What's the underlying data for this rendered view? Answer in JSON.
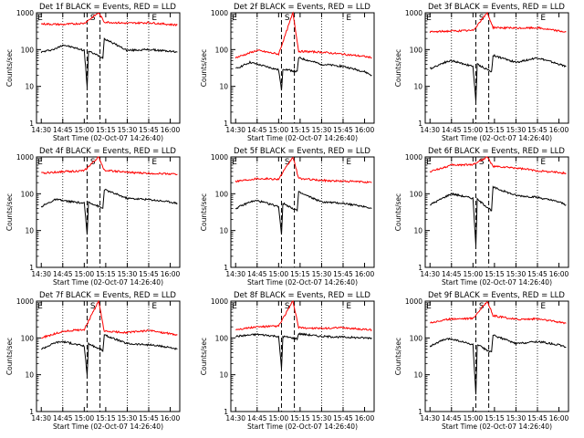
{
  "chart_data": [
    {
      "type": "line",
      "title": "Det 1f  BLACK = Events, RED = LLD",
      "ylabel": "Counts/sec",
      "xlabel": "Start Time (02-Oct-07 14:26:40)",
      "x_ticks": [
        "14:30",
        "14:45",
        "15:00",
        "15:15",
        "15:30",
        "15:45",
        "16:00"
      ],
      "y_ticks": [
        "1",
        "10",
        "100",
        "1000"
      ],
      "yscale": "log",
      "ylim": [
        1,
        1000
      ],
      "xlim": [
        "14:26:40",
        "16:06:40"
      ],
      "markers": [
        "E",
        "S",
        "E"
      ],
      "series": [
        {
          "name": "BLACK = Events",
          "color": "#000000",
          "x": [
            "14:30",
            "14:40",
            "14:45",
            "15:00",
            "15:02",
            "15:03",
            "15:13",
            "15:14",
            "15:30",
            "15:45",
            "16:00",
            "16:05"
          ],
          "values": [
            85,
            105,
            135,
            95,
            10,
            90,
            60,
            200,
            95,
            100,
            90,
            85
          ]
        },
        {
          "name": "RED = LLD",
          "color": "#ff0000",
          "x": [
            "14:30",
            "14:45",
            "15:00",
            "15:10",
            "15:14",
            "15:30",
            "15:45",
            "16:00",
            "16:05"
          ],
          "values": [
            500,
            480,
            520,
            1000,
            560,
            520,
            540,
            480,
            470
          ]
        }
      ]
    },
    {
      "type": "line",
      "title": "Det 2f  BLACK = Events, RED = LLD",
      "ylabel": "Counts/sec",
      "xlabel": "Start Time (02-Oct-07 14:26:40)",
      "x_ticks": [
        "14:30",
        "14:45",
        "15:00",
        "15:15",
        "15:30",
        "15:45",
        "16:00"
      ],
      "y_ticks": [
        "1",
        "10",
        "100",
        "1000"
      ],
      "yscale": "log",
      "ylim": [
        1,
        1000
      ],
      "xlim": [
        "14:26:40",
        "16:06:40"
      ],
      "markers": [
        "E",
        "S",
        "E"
      ],
      "series": [
        {
          "name": "BLACK = Events",
          "color": "#000000",
          "x": [
            "14:30",
            "14:40",
            "14:45",
            "15:00",
            "15:02",
            "15:03",
            "15:13",
            "15:14",
            "15:30",
            "15:45",
            "16:00",
            "16:05"
          ],
          "values": [
            30,
            45,
            40,
            28,
            8,
            30,
            25,
            60,
            40,
            35,
            25,
            20
          ]
        },
        {
          "name": "RED = LLD",
          "color": "#ff0000",
          "x": [
            "14:30",
            "14:45",
            "15:00",
            "15:10",
            "15:14",
            "15:30",
            "15:45",
            "16:00",
            "16:05"
          ],
          "values": [
            60,
            95,
            75,
            1000,
            90,
            85,
            75,
            65,
            60
          ]
        }
      ]
    },
    {
      "type": "line",
      "title": "Det 3f  BLACK = Events, RED = LLD",
      "ylabel": "Counts/sec",
      "xlabel": "Start Time (02-Oct-07 14:26:40)",
      "x_ticks": [
        "14:30",
        "14:45",
        "15:00",
        "15:15",
        "15:30",
        "15:45",
        "16:00"
      ],
      "y_ticks": [
        "1",
        "10",
        "100",
        "1000"
      ],
      "yscale": "log",
      "ylim": [
        1,
        1000
      ],
      "xlim": [
        "14:26:40",
        "16:06:40"
      ],
      "markers": [
        "E",
        "S",
        "E"
      ],
      "series": [
        {
          "name": "BLACK = Events",
          "color": "#000000",
          "x": [
            "14:30",
            "14:40",
            "14:45",
            "15:00",
            "15:02",
            "15:03",
            "15:13",
            "15:14",
            "15:30",
            "15:45",
            "16:00",
            "16:05"
          ],
          "values": [
            30,
            45,
            50,
            35,
            4,
            40,
            25,
            70,
            45,
            60,
            40,
            35
          ]
        },
        {
          "name": "RED = LLD",
          "color": "#ff0000",
          "x": [
            "14:30",
            "14:45",
            "15:00",
            "15:10",
            "15:14",
            "15:30",
            "15:45",
            "16:00",
            "16:05"
          ],
          "values": [
            300,
            320,
            330,
            1000,
            400,
            380,
            390,
            320,
            300
          ]
        }
      ]
    },
    {
      "type": "line",
      "title": "Det 4f  BLACK = Events, RED = LLD",
      "ylabel": "Counts/sec",
      "xlabel": "Start Time (02-Oct-07 14:26:40)",
      "x_ticks": [
        "14:30",
        "14:45",
        "15:00",
        "15:15",
        "15:30",
        "15:45",
        "16:00"
      ],
      "y_ticks": [
        "1",
        "10",
        "100",
        "1000"
      ],
      "yscale": "log",
      "ylim": [
        1,
        1000
      ],
      "xlim": [
        "14:26:40",
        "16:06:40"
      ],
      "markers": [
        "E",
        "S",
        "E"
      ],
      "series": [
        {
          "name": "BLACK = Events",
          "color": "#000000",
          "x": [
            "14:30",
            "14:40",
            "14:45",
            "15:00",
            "15:02",
            "15:03",
            "15:13",
            "15:14",
            "15:30",
            "15:45",
            "16:00",
            "16:05"
          ],
          "values": [
            45,
            70,
            65,
            55,
            8,
            60,
            40,
            130,
            75,
            70,
            60,
            55
          ]
        },
        {
          "name": "RED = LLD",
          "color": "#ff0000",
          "x": [
            "14:30",
            "14:45",
            "15:00",
            "15:10",
            "15:14",
            "15:30",
            "15:45",
            "16:00",
            "16:05"
          ],
          "values": [
            360,
            400,
            420,
            1000,
            440,
            380,
            360,
            350,
            340
          ]
        }
      ]
    },
    {
      "type": "line",
      "title": "Det 5f  BLACK = Events, RED = LLD",
      "ylabel": "Counts/sec",
      "xlabel": "Start Time (02-Oct-07 14:26:40)",
      "x_ticks": [
        "14:30",
        "14:45",
        "15:00",
        "15:15",
        "15:30",
        "15:45",
        "16:00"
      ],
      "y_ticks": [
        "1",
        "10",
        "100",
        "1000"
      ],
      "yscale": "log",
      "ylim": [
        1,
        1000
      ],
      "xlim": [
        "14:26:40",
        "16:06:40"
      ],
      "markers": [
        "E",
        "S",
        "E"
      ],
      "series": [
        {
          "name": "BLACK = Events",
          "color": "#000000",
          "x": [
            "14:30",
            "14:40",
            "14:45",
            "15:00",
            "15:02",
            "15:03",
            "15:13",
            "15:14",
            "15:30",
            "15:45",
            "16:00",
            "16:05"
          ],
          "values": [
            40,
            60,
            65,
            45,
            8,
            55,
            35,
            110,
            60,
            55,
            45,
            40
          ]
        },
        {
          "name": "RED = LLD",
          "color": "#ff0000",
          "x": [
            "14:30",
            "14:45",
            "15:00",
            "15:10",
            "15:14",
            "15:30",
            "15:45",
            "16:00",
            "16:05"
          ],
          "values": [
            220,
            260,
            250,
            1000,
            260,
            230,
            220,
            210,
            200
          ]
        }
      ]
    },
    {
      "type": "line",
      "title": "Det 6f  BLACK = Events, RED = LLD",
      "ylabel": "Counts/sec",
      "xlabel": "Start Time (02-Oct-07 14:26:40)",
      "x_ticks": [
        "14:30",
        "14:45",
        "15:00",
        "15:15",
        "15:30",
        "15:45",
        "16:00"
      ],
      "y_ticks": [
        "1",
        "10",
        "100",
        "1000"
      ],
      "yscale": "log",
      "ylim": [
        1,
        1000
      ],
      "xlim": [
        "14:26:40",
        "16:06:40"
      ],
      "markers": [
        "E",
        "S",
        "E"
      ],
      "series": [
        {
          "name": "BLACK = Events",
          "color": "#000000",
          "x": [
            "14:30",
            "14:40",
            "14:45",
            "15:00",
            "15:02",
            "15:03",
            "15:13",
            "15:14",
            "15:30",
            "15:45",
            "16:00",
            "16:05"
          ],
          "values": [
            50,
            80,
            100,
            75,
            4,
            70,
            35,
            150,
            90,
            80,
            60,
            50
          ]
        },
        {
          "name": "RED = LLD",
          "color": "#ff0000",
          "x": [
            "14:30",
            "14:45",
            "15:00",
            "15:10",
            "15:14",
            "15:30",
            "15:45",
            "16:00",
            "16:05"
          ],
          "values": [
            400,
            600,
            620,
            1000,
            550,
            500,
            420,
            380,
            360
          ]
        }
      ]
    },
    {
      "type": "line",
      "title": "Det 7f  BLACK = Events, RED = LLD",
      "ylabel": "Counts/sec",
      "xlabel": "Start Time (02-Oct-07 14:26:40)",
      "x_ticks": [
        "14:30",
        "14:45",
        "15:00",
        "15:15",
        "15:30",
        "15:45",
        "16:00"
      ],
      "y_ticks": [
        "1",
        "10",
        "100",
        "1000"
      ],
      "yscale": "log",
      "ylim": [
        1,
        1000
      ],
      "xlim": [
        "14:26:40",
        "16:06:40"
      ],
      "markers": [
        "E",
        "S",
        "E"
      ],
      "series": [
        {
          "name": "BLACK = Events",
          "color": "#000000",
          "x": [
            "14:30",
            "14:40",
            "14:45",
            "15:00",
            "15:02",
            "15:03",
            "15:13",
            "15:14",
            "15:30",
            "15:45",
            "16:00",
            "16:05"
          ],
          "values": [
            50,
            75,
            80,
            60,
            10,
            70,
            45,
            120,
            70,
            65,
            55,
            50
          ]
        },
        {
          "name": "RED = LLD",
          "color": "#ff0000",
          "x": [
            "14:30",
            "14:45",
            "15:00",
            "15:10",
            "15:14",
            "15:30",
            "15:45",
            "16:00",
            "16:05"
          ],
          "values": [
            100,
            150,
            170,
            1000,
            150,
            140,
            160,
            130,
            120
          ]
        }
      ]
    },
    {
      "type": "line",
      "title": "Det 8f  BLACK = Events, RED = LLD",
      "ylabel": "Counts/sec",
      "xlabel": "Start Time (02-Oct-07 14:26:40)",
      "x_ticks": [
        "14:30",
        "14:45",
        "15:00",
        "15:15",
        "15:30",
        "15:45",
        "16:00"
      ],
      "y_ticks": [
        "1",
        "10",
        "100",
        "1000"
      ],
      "yscale": "log",
      "ylim": [
        1,
        1000
      ],
      "xlim": [
        "14:26:40",
        "16:06:40"
      ],
      "markers": [
        "E",
        "S",
        "E"
      ],
      "series": [
        {
          "name": "BLACK = Events",
          "color": "#000000",
          "x": [
            "14:30",
            "14:40",
            "14:45",
            "15:00",
            "15:02",
            "15:03",
            "15:13",
            "15:14",
            "15:30",
            "15:45",
            "16:00",
            "16:05"
          ],
          "values": [
            110,
            120,
            125,
            110,
            15,
            110,
            95,
            130,
            110,
            105,
            100,
            100
          ]
        },
        {
          "name": "RED = LLD",
          "color": "#ff0000",
          "x": [
            "14:30",
            "14:45",
            "15:00",
            "15:10",
            "15:14",
            "15:30",
            "15:45",
            "16:00",
            "16:05"
          ],
          "values": [
            170,
            200,
            210,
            1000,
            190,
            180,
            190,
            170,
            165
          ]
        }
      ]
    },
    {
      "type": "line",
      "title": "Det 9f  BLACK = Events, RED = LLD",
      "ylabel": "Counts/sec",
      "xlabel": "Start Time (02-Oct-07 14:26:40)",
      "x_ticks": [
        "14:30",
        "14:45",
        "15:00",
        "15:15",
        "15:30",
        "15:45",
        "16:00"
      ],
      "y_ticks": [
        "1",
        "10",
        "100",
        "1000"
      ],
      "yscale": "log",
      "ylim": [
        1,
        1000
      ],
      "xlim": [
        "14:26:40",
        "16:06:40"
      ],
      "markers": [
        "E",
        "S",
        "E"
      ],
      "series": [
        {
          "name": "BLACK = Events",
          "color": "#000000",
          "x": [
            "14:30",
            "14:40",
            "14:45",
            "15:00",
            "15:02",
            "15:03",
            "15:13",
            "15:14",
            "15:30",
            "15:45",
            "16:00",
            "16:05"
          ],
          "values": [
            60,
            90,
            95,
            65,
            3,
            65,
            40,
            120,
            70,
            80,
            65,
            55
          ]
        },
        {
          "name": "RED = LLD",
          "color": "#ff0000",
          "x": [
            "14:30",
            "14:45",
            "15:00",
            "15:10",
            "15:14",
            "15:30",
            "15:45",
            "16:00",
            "16:05"
          ],
          "values": [
            260,
            330,
            340,
            1000,
            400,
            320,
            330,
            270,
            250
          ]
        }
      ]
    }
  ]
}
